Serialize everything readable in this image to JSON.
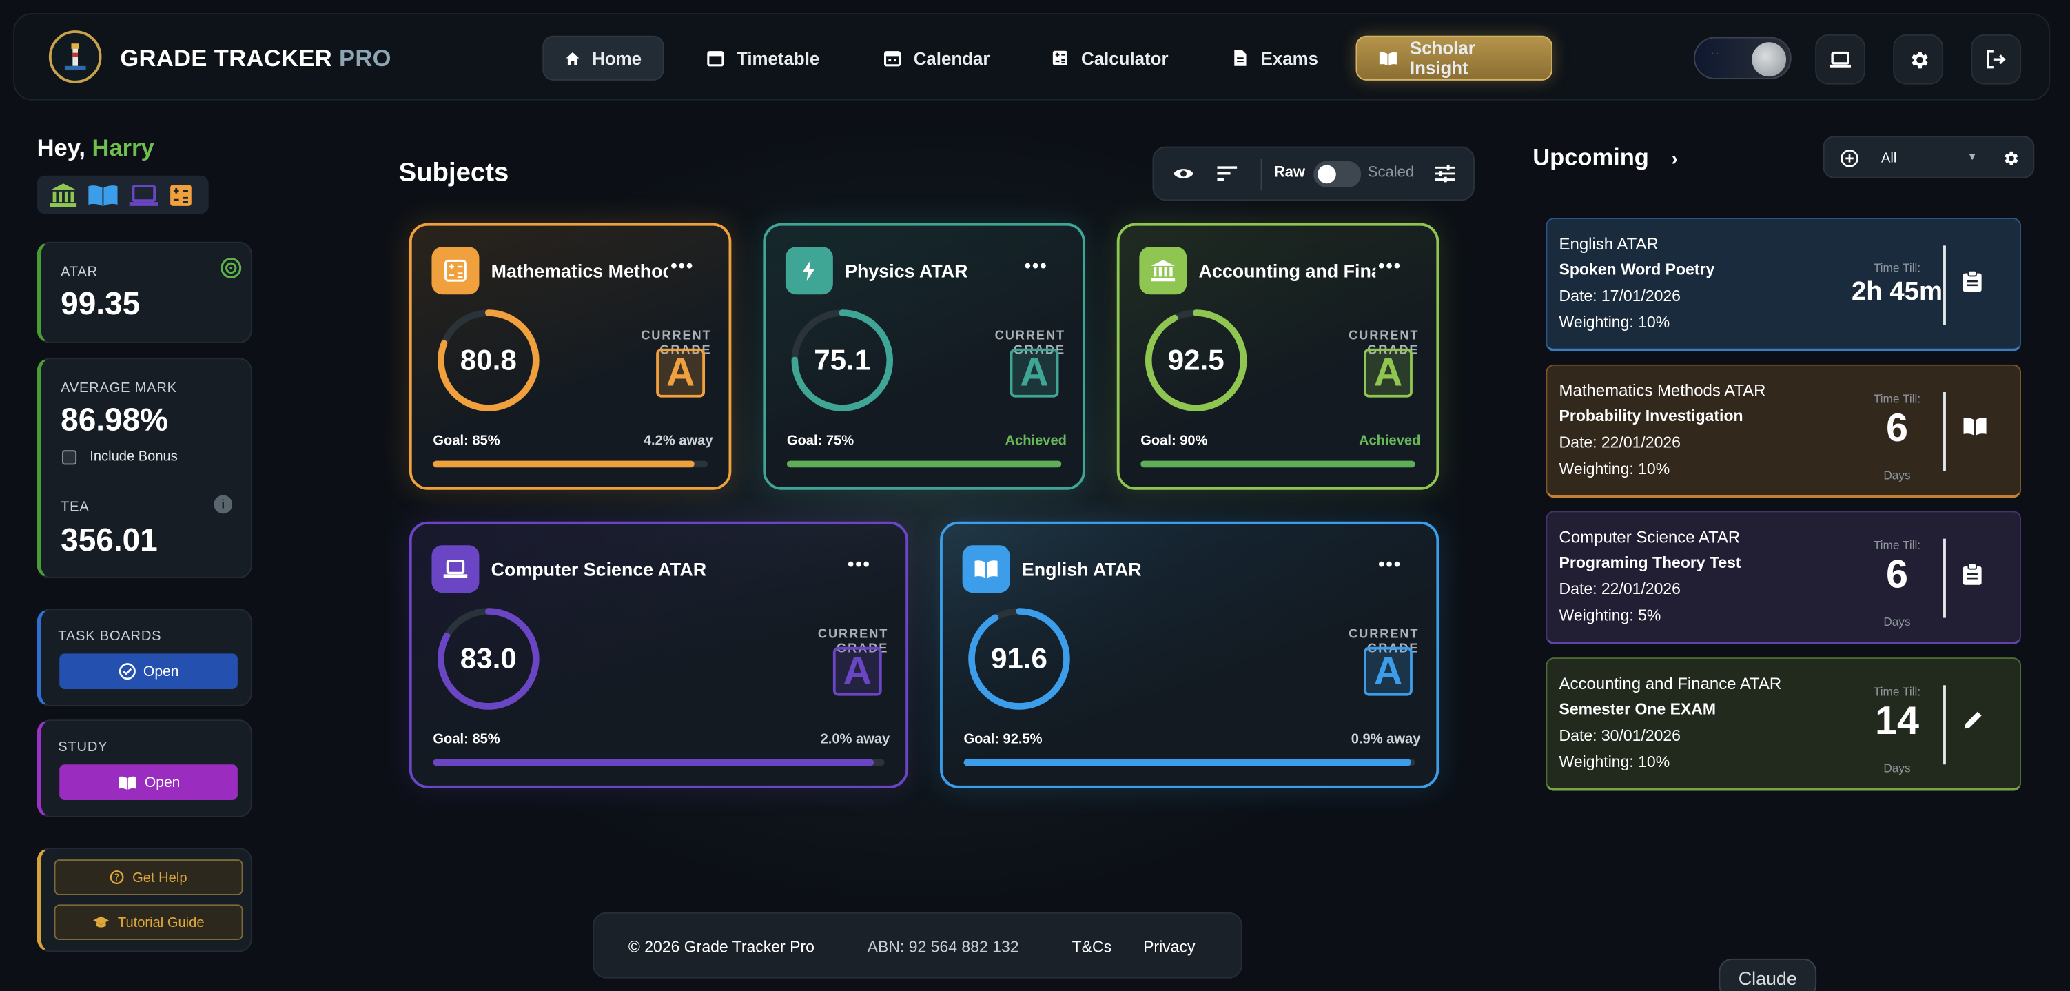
{
  "app": {
    "brand_main": "GRADE TRACKER",
    "brand_suffix": "PRO"
  },
  "nav": {
    "items": [
      {
        "label": "Home",
        "icon": "home-icon",
        "active": true
      },
      {
        "label": "Timetable",
        "icon": "calendar-icon"
      },
      {
        "label": "Calendar",
        "icon": "calendar-grid-icon"
      },
      {
        "label": "Calculator",
        "icon": "calculator-icon"
      },
      {
        "label": "Exams",
        "icon": "document-icon"
      },
      {
        "label": "Scholar Insight",
        "icon": "book-open-icon",
        "accent": "#b5944b"
      }
    ],
    "right_icons": [
      "theme-toggle",
      "laptop-icon",
      "gear-icon",
      "logout-icon"
    ]
  },
  "sidebar": {
    "greeting": "Hey,",
    "user_name": "Harry",
    "quick_icons": [
      "bank-icon",
      "book-icon",
      "laptop-icon",
      "calculator-icon"
    ],
    "atar": {
      "label": "ATAR",
      "value": "99.35"
    },
    "average": {
      "label": "AVERAGE MARK",
      "value": "86.98%",
      "bonus_label": "Include Bonus"
    },
    "tea": {
      "label": "TEA",
      "value": "356.01"
    },
    "task_boards": {
      "label": "TASK BOARDS",
      "button": "Open"
    },
    "study": {
      "label": "STUDY",
      "button": "Open"
    },
    "help": {
      "get_help": "Get Help",
      "tutorial": "Tutorial Guide"
    }
  },
  "subjects": {
    "title": "Subjects",
    "toolbar": {
      "raw_label": "Raw",
      "scaled_label": "Scaled"
    },
    "cards": [
      {
        "name": "Mathematics Methods ATAR",
        "score": "80.8",
        "percent": 80.8,
        "grade_label": "CURRENT GRADE",
        "grade": "A",
        "goal": "Goal: 85%",
        "status": "4.2% away",
        "progress": 0.95,
        "color": "#f0a03c",
        "status_color": "#cfd4d8"
      },
      {
        "name": "Physics ATAR",
        "score": "75.1",
        "percent": 75.1,
        "grade_label": "CURRENT GRADE",
        "grade": "A",
        "goal": "Goal: 75%",
        "status": "Achieved",
        "progress": 1.0,
        "color": "#3fa595",
        "status_color": "#68b85a"
      },
      {
        "name": "Accounting and Finance ATAR",
        "score": "92.5",
        "percent": 92.5,
        "grade_label": "CURRENT GRADE",
        "grade": "A",
        "goal": "Goal: 90%",
        "status": "Achieved",
        "progress": 1.0,
        "color": "#8fc652",
        "status_color": "#68b85a"
      },
      {
        "name": "Computer Science ATAR",
        "score": "83.0",
        "percent": 83.0,
        "grade_label": "CURRENT GRADE",
        "grade": "A",
        "goal": "Goal: 85%",
        "status": "2.0% away",
        "progress": 0.976,
        "color": "#6a46c4",
        "status_color": "#cfd4d8"
      },
      {
        "name": "English ATAR",
        "score": "91.6",
        "percent": 91.6,
        "grade_label": "CURRENT GRADE",
        "grade": "A",
        "goal": "Goal: 92.5%",
        "status": "0.9% away",
        "progress": 0.99,
        "color": "#3c9eea",
        "status_color": "#cfd4d8"
      }
    ]
  },
  "upcoming": {
    "title": "Upcoming",
    "filter_value": "All",
    "events": [
      {
        "subject": "English ATAR",
        "task": "Spoken Word Poetry",
        "date": "Date: 17/01/2026",
        "weighting": "Weighting: 10%",
        "time_label": "Time Till:",
        "time_value": "2h 45m",
        "time_unit": "",
        "icon": "clipboard-icon",
        "bg": "#1a2b3d",
        "border": "#3a7cc0"
      },
      {
        "subject": "Mathematics Methods ATAR",
        "task": "Probability Investigation",
        "date": "Date: 22/01/2026",
        "weighting": "Weighting: 10%",
        "time_label": "Time Till:",
        "time_value": "6",
        "time_unit": "Days",
        "icon": "book-open-icon",
        "bg": "#33281c",
        "border": "#c2822f"
      },
      {
        "subject": "Computer Science ATAR",
        "task": "Programing Theory Test",
        "date": "Date: 22/01/2026",
        "weighting": "Weighting: 5%",
        "time_label": "Time Till:",
        "time_value": "6",
        "time_unit": "Days",
        "icon": "clipboard-icon",
        "bg": "#221e33",
        "border": "#6244a8"
      },
      {
        "subject": "Accounting and Finance ATAR",
        "task": "Semester One EXAM",
        "date": "Date: 30/01/2026",
        "weighting": "Weighting: 10%",
        "time_label": "Time Till:",
        "time_value": "14",
        "time_unit": "Days",
        "icon": "pencil-icon",
        "bg": "#222a1e",
        "border": "#7aa443"
      }
    ]
  },
  "footer": {
    "copyright": "© 2026 Grade Tracker Pro",
    "abn": "ABN: 92 564 882 132",
    "terms": "T&Cs",
    "privacy": "Privacy"
  },
  "claude_label": "Claude"
}
